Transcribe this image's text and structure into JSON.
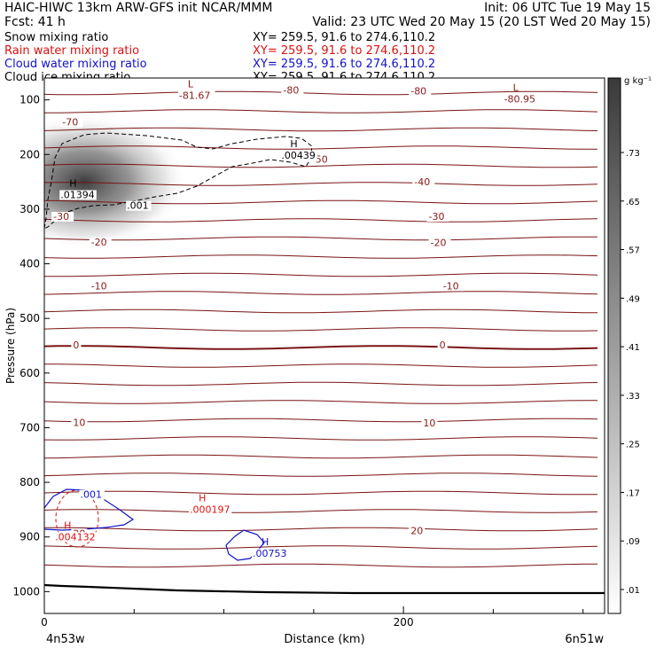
{
  "header": {
    "title": "HAIC-HIWC 13km ARW-GFS init   NCAR/MMM",
    "init": "Init: 06 UTC Tue 19 May 15",
    "fcst": "Fcst:   41 h",
    "valid": "Valid: 23 UTC Wed 20 May 15 (20 LST Wed 20 May 15)",
    "fields": [
      {
        "name": "Snow mixing ratio",
        "xy": "XY= 259.5, 91.6 to 274.6,110.2",
        "color": "#000000"
      },
      {
        "name": "Rain water mixing ratio",
        "xy": "XY= 259.5, 91.6 to 274.6,110.2",
        "color": "#dd1111"
      },
      {
        "name": "Cloud water mixing ratio",
        "xy": "XY= 259.5, 91.6 to 274.6,110.2",
        "color": "#1111cc"
      },
      {
        "name": "Cloud ice mixing ratio",
        "xy": "XY= 259.5, 91.6 to 274.6,110.2",
        "color": "#000000"
      }
    ]
  },
  "colorbar": {
    "unit": "g kg⁻¹",
    "labels": [
      ".73",
      ".65",
      ".57",
      ".49",
      ".41",
      ".33",
      ".25",
      ".17",
      ".09",
      ".01"
    ]
  },
  "footer": {
    "left": "4n53w",
    "right": "6n51w"
  },
  "chart_data": {
    "type": "contour",
    "xlabel": "Distance (km)",
    "ylabel": "Pressure (hPa)",
    "xlim": [
      0,
      312
    ],
    "ylim": [
      1040,
      60
    ],
    "x_ticks": [
      {
        "value": 0,
        "label": "0"
      },
      {
        "value": 200,
        "label": "200"
      }
    ],
    "x_minor_ticks": [
      50,
      100,
      150,
      250,
      300
    ],
    "y_ticks": [
      100,
      200,
      300,
      400,
      500,
      600,
      700,
      800,
      900,
      1000
    ],
    "temperature_labels": [
      {
        "text": "-70",
        "x": 10,
        "p": 145
      },
      {
        "text": "-80",
        "x": 133,
        "p": 87
      },
      {
        "text": "-80",
        "x": 204,
        "p": 88
      },
      {
        "text": "-50",
        "x": 149,
        "p": 213
      },
      {
        "text": "-40",
        "x": 206,
        "p": 255
      },
      {
        "text": "-30",
        "x": 5,
        "p": 318
      },
      {
        "text": "-30",
        "x": 214,
        "p": 318
      },
      {
        "text": "-20",
        "x": 26,
        "p": 365
      },
      {
        "text": "-20",
        "x": 215,
        "p": 366
      },
      {
        "text": "-10",
        "x": 26,
        "p": 445
      },
      {
        "text": "-10",
        "x": 222,
        "p": 445
      },
      {
        "text": "0",
        "x": 16,
        "p": 553
      },
      {
        "text": "0",
        "x": 220,
        "p": 553
      },
      {
        "text": "10",
        "x": 16,
        "p": 695
      },
      {
        "text": "10",
        "x": 211,
        "p": 696
      },
      {
        "text": "20",
        "x": 16,
        "p": 898
      },
      {
        "text": "20",
        "x": 204,
        "p": 893
      }
    ],
    "extrema": [
      {
        "kind": "L",
        "value": "-81.67",
        "x": 75,
        "p": 80,
        "color": "#8b1a1a"
      },
      {
        "kind": "L",
        "value": "-80.95",
        "x": 256,
        "p": 87,
        "color": "#8b1a1a"
      },
      {
        "kind": "H",
        "value": ".01394",
        "x": 9,
        "p": 262,
        "color": "#000000"
      },
      {
        "kind": "H",
        "value": ".00439",
        "x": 132,
        "p": 190,
        "color": "#000000"
      },
      {
        "kind": "H",
        "value": ".004132",
        "x": 6,
        "p": 888,
        "color": "#dd1111"
      },
      {
        "kind": "H",
        "value": ".000197",
        "x": 81,
        "p": 838,
        "color": "#dd1111"
      },
      {
        "kind": "H",
        "value": ".00753",
        "x": 116,
        "p": 918,
        "color": "#1111cc"
      }
    ],
    "cloud_labels": [
      {
        "text": ".001",
        "x": 46,
        "p": 298,
        "color": "#000000"
      },
      {
        "text": ".001",
        "x": 20,
        "p": 827,
        "color": "#1111cc"
      }
    ]
  }
}
